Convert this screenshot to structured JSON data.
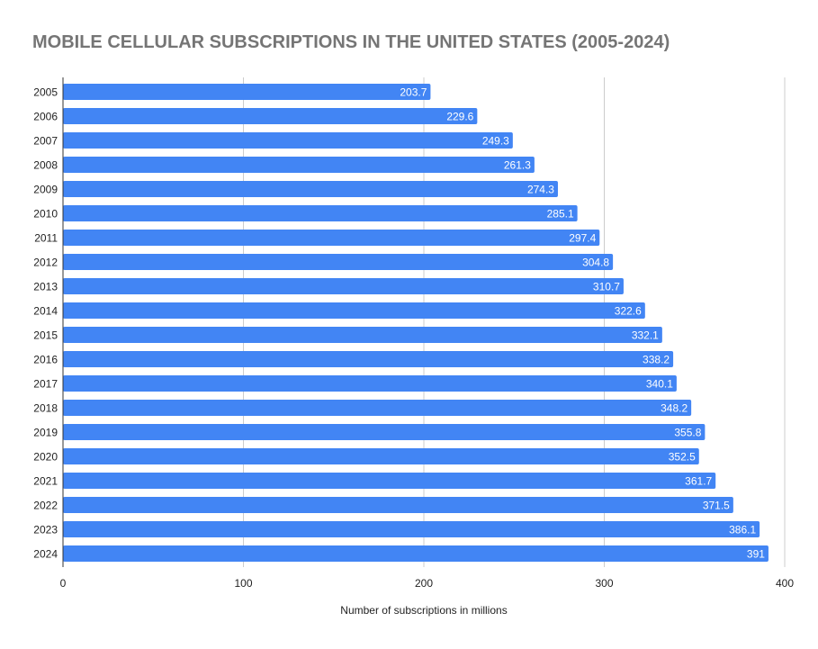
{
  "chart_data": {
    "type": "bar",
    "orientation": "horizontal",
    "title": "MOBILE CELLULAR SUBSCRIPTIONS IN THE UNITED STATES (2005-2024)",
    "xlabel": "Number of subscriptions in millions",
    "ylabel": "",
    "categories": [
      "2005",
      "2006",
      "2007",
      "2008",
      "2009",
      "2010",
      "2011",
      "2012",
      "2013",
      "2014",
      "2015",
      "2016",
      "2017",
      "2018",
      "2019",
      "2020",
      "2021",
      "2022",
      "2023",
      "2024"
    ],
    "values": [
      203.7,
      229.6,
      249.3,
      261.3,
      274.3,
      285.1,
      297.4,
      304.8,
      310.7,
      322.6,
      332.1,
      338.2,
      340.1,
      348.2,
      355.8,
      352.5,
      361.7,
      371.5,
      386.1,
      391
    ],
    "value_labels": [
      "203.7",
      "229.6",
      "249.3",
      "261.3",
      "274.3",
      "285.1",
      "297.4",
      "304.8",
      "310.7",
      "322.6",
      "332.1",
      "338.2",
      "340.1",
      "348.2",
      "355.8",
      "352.5",
      "361.7",
      "371.5",
      "386.1",
      "391"
    ],
    "xlim": [
      0,
      400
    ],
    "xticks": [
      0,
      100,
      200,
      300,
      400
    ],
    "xtick_labels": [
      "0",
      "100",
      "200",
      "300",
      "400"
    ],
    "grid": true,
    "legend": "none",
    "colors": {
      "bar": "#4285f4",
      "grid": "#cccccc",
      "axis": "#333333",
      "title": "#757575",
      "label_text": "#ffffff",
      "tick_text": "#222222"
    }
  }
}
